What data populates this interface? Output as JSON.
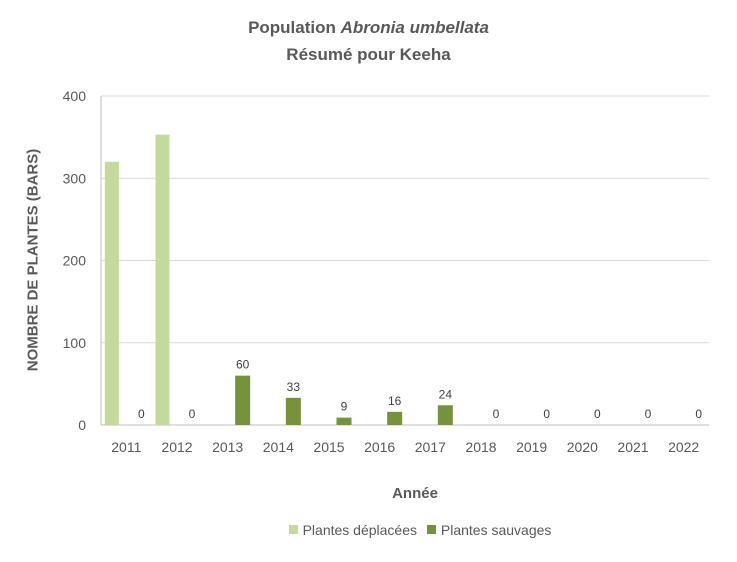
{
  "chart_data": {
    "type": "bar",
    "title": "Population Abronia umbellata",
    "title_plain": "Population",
    "title_italic": "Abronia umbellata",
    "subtitle": "Résumé pour Keeha",
    "xlabel": "Année",
    "ylabel": "NOMBRE DE PLANTES (BARS)",
    "ylim": [
      0,
      400
    ],
    "yticks": [
      0,
      100,
      200,
      300,
      400
    ],
    "grid": true,
    "legend_position": "bottom",
    "categories": [
      "2011",
      "2012",
      "2013",
      "2014",
      "2015",
      "2016",
      "2017",
      "2018",
      "2019",
      "2020",
      "2021",
      "2022"
    ],
    "series": [
      {
        "name": "Plantes déplacées",
        "color": "#c5d99c",
        "values": [
          320,
          353,
          0,
          0,
          0,
          0,
          0,
          0,
          0,
          0,
          0,
          0
        ],
        "labels": false
      },
      {
        "name": "Plantes sauvages",
        "color": "#76923c",
        "values": [
          0,
          0,
          60,
          33,
          9,
          16,
          24,
          0,
          0,
          0,
          0,
          0
        ],
        "labels": true
      }
    ]
  },
  "colors": {
    "text": "#595959",
    "grid": "#d9d9d9",
    "axis": "#bfbfbf"
  }
}
